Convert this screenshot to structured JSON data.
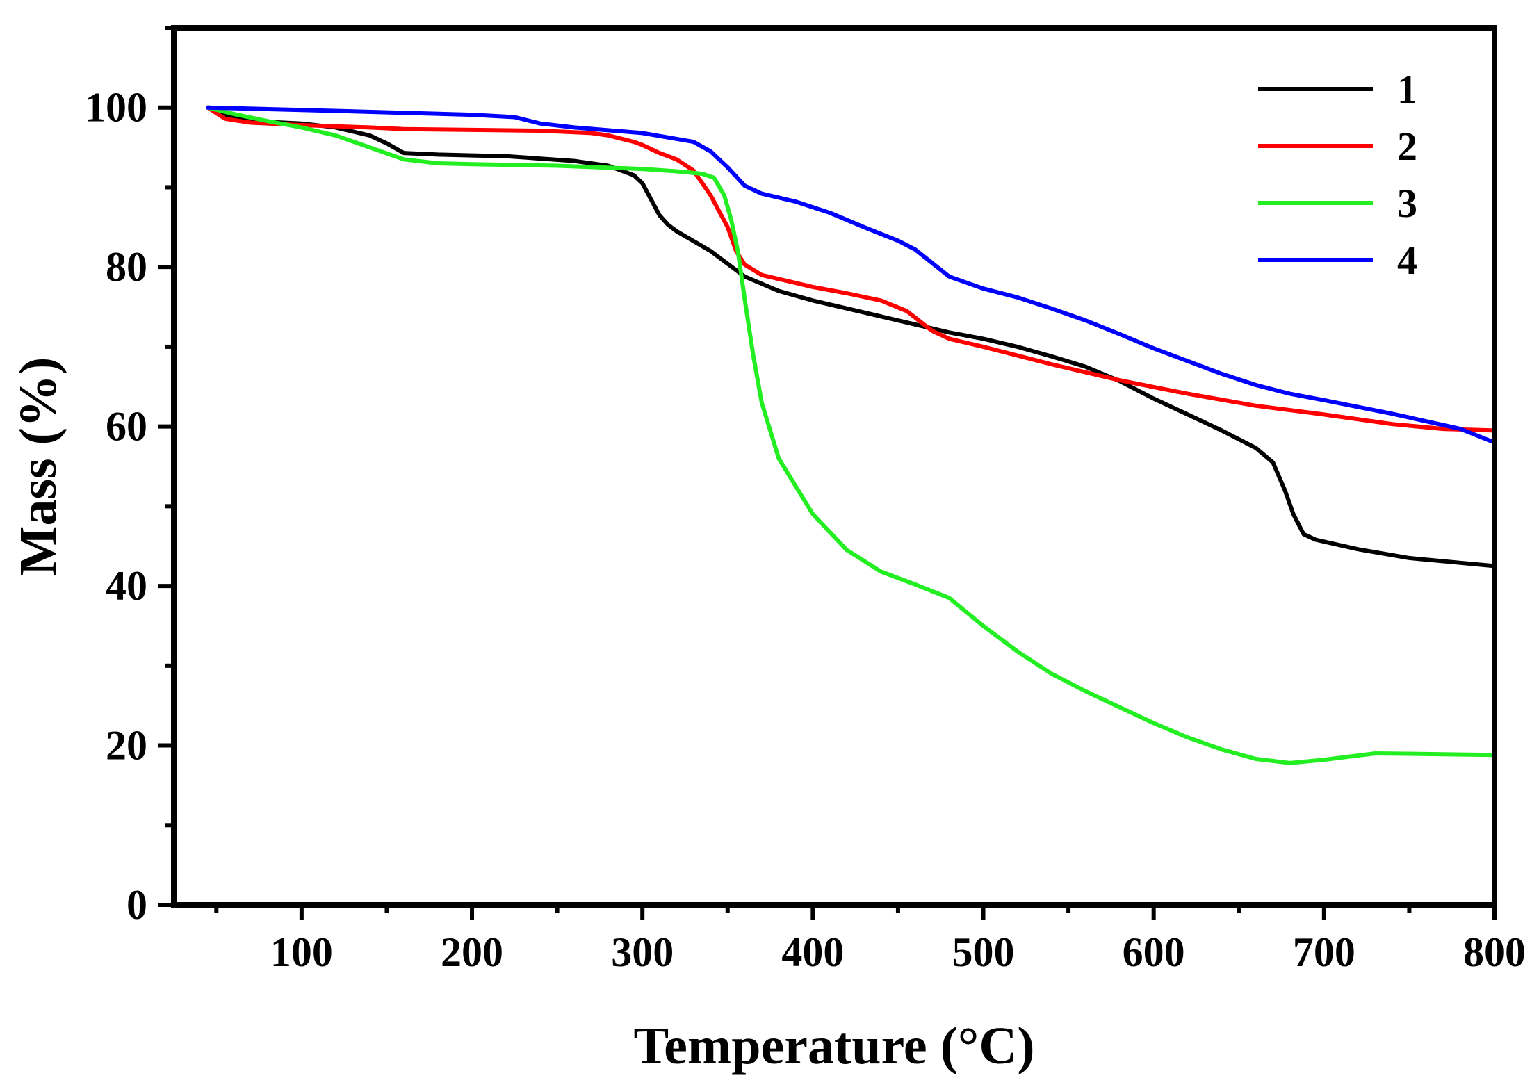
{
  "chart_data": {
    "type": "line",
    "title": "",
    "xlabel": "Temperature (°C)",
    "ylabel": "Mass (%)",
    "xlim": [
      25,
      800
    ],
    "ylim": [
      0,
      110
    ],
    "xticks": [
      100,
      200,
      300,
      400,
      500,
      600,
      700,
      800
    ],
    "yticks": [
      0,
      20,
      40,
      60,
      80,
      100
    ],
    "grid": false,
    "legend_position": "top-right",
    "series": [
      {
        "name": "1",
        "color": "#000000",
        "points": [
          [
            45,
            100
          ],
          [
            55,
            99
          ],
          [
            70,
            98.3
          ],
          [
            100,
            98
          ],
          [
            120,
            97.5
          ],
          [
            140,
            96.5
          ],
          [
            150,
            95.5
          ],
          [
            160,
            94.3
          ],
          [
            180,
            94.1
          ],
          [
            200,
            94
          ],
          [
            220,
            93.9
          ],
          [
            260,
            93.3
          ],
          [
            280,
            92.7
          ],
          [
            295,
            91.5
          ],
          [
            300,
            90.5
          ],
          [
            305,
            88.5
          ],
          [
            310,
            86.5
          ],
          [
            315,
            85.3
          ],
          [
            320,
            84.5
          ],
          [
            340,
            82
          ],
          [
            360,
            78.8
          ],
          [
            380,
            77
          ],
          [
            400,
            75.8
          ],
          [
            420,
            74.8
          ],
          [
            460,
            72.8
          ],
          [
            480,
            71.8
          ],
          [
            500,
            71
          ],
          [
            520,
            70
          ],
          [
            540,
            68.8
          ],
          [
            560,
            67.5
          ],
          [
            580,
            65.7
          ],
          [
            600,
            63.5
          ],
          [
            620,
            61.5
          ],
          [
            640,
            59.5
          ],
          [
            660,
            57.3
          ],
          [
            670,
            55.5
          ],
          [
            677,
            52
          ],
          [
            682,
            49
          ],
          [
            688,
            46.5
          ],
          [
            695,
            45.8
          ],
          [
            720,
            44.6
          ],
          [
            750,
            43.5
          ],
          [
            780,
            42.9
          ],
          [
            800,
            42.5
          ]
        ]
      },
      {
        "name": "2",
        "color": "#ff0000",
        "points": [
          [
            45,
            100
          ],
          [
            50,
            99.3
          ],
          [
            55,
            98.6
          ],
          [
            70,
            98.1
          ],
          [
            100,
            97.8
          ],
          [
            140,
            97.5
          ],
          [
            160,
            97.3
          ],
          [
            200,
            97.2
          ],
          [
            240,
            97.1
          ],
          [
            270,
            96.8
          ],
          [
            280,
            96.5
          ],
          [
            295,
            95.7
          ],
          [
            300,
            95.3
          ],
          [
            310,
            94.3
          ],
          [
            320,
            93.5
          ],
          [
            330,
            92.1
          ],
          [
            340,
            89
          ],
          [
            350,
            85
          ],
          [
            355,
            82
          ],
          [
            360,
            80.3
          ],
          [
            370,
            79
          ],
          [
            400,
            77.5
          ],
          [
            420,
            76.7
          ],
          [
            440,
            75.8
          ],
          [
            455,
            74.5
          ],
          [
            470,
            72
          ],
          [
            480,
            71
          ],
          [
            500,
            70
          ],
          [
            540,
            67.8
          ],
          [
            580,
            65.8
          ],
          [
            620,
            64.1
          ],
          [
            660,
            62.6
          ],
          [
            700,
            61.5
          ],
          [
            740,
            60.3
          ],
          [
            770,
            59.7
          ],
          [
            800,
            59.5
          ]
        ]
      },
      {
        "name": "3",
        "color": "#22ee22",
        "points": [
          [
            45,
            100
          ],
          [
            60,
            99.2
          ],
          [
            80,
            98.3
          ],
          [
            100,
            97.5
          ],
          [
            120,
            96.5
          ],
          [
            140,
            95
          ],
          [
            160,
            93.5
          ],
          [
            180,
            93
          ],
          [
            200,
            92.9
          ],
          [
            250,
            92.7
          ],
          [
            300,
            92.3
          ],
          [
            320,
            92
          ],
          [
            335,
            91.7
          ],
          [
            342,
            91.2
          ],
          [
            348,
            89
          ],
          [
            352,
            86
          ],
          [
            356,
            82
          ],
          [
            360,
            76
          ],
          [
            365,
            69
          ],
          [
            370,
            63
          ],
          [
            380,
            56
          ],
          [
            400,
            49
          ],
          [
            420,
            44.5
          ],
          [
            440,
            41.8
          ],
          [
            460,
            40.2
          ],
          [
            480,
            38.5
          ],
          [
            500,
            35
          ],
          [
            520,
            31.8
          ],
          [
            540,
            29
          ],
          [
            560,
            26.8
          ],
          [
            580,
            24.8
          ],
          [
            600,
            22.8
          ],
          [
            620,
            21
          ],
          [
            640,
            19.5
          ],
          [
            660,
            18.3
          ],
          [
            680,
            17.8
          ],
          [
            700,
            18.2
          ],
          [
            730,
            19
          ],
          [
            770,
            18.9
          ],
          [
            800,
            18.8
          ]
        ]
      },
      {
        "name": "4",
        "color": "#0000ff",
        "points": [
          [
            45,
            100
          ],
          [
            100,
            99.7
          ],
          [
            150,
            99.4
          ],
          [
            200,
            99.1
          ],
          [
            225,
            98.8
          ],
          [
            240,
            98
          ],
          [
            260,
            97.5
          ],
          [
            300,
            96.8
          ],
          [
            330,
            95.7
          ],
          [
            340,
            94.5
          ],
          [
            350,
            92.5
          ],
          [
            360,
            90.2
          ],
          [
            370,
            89.2
          ],
          [
            390,
            88.2
          ],
          [
            410,
            86.8
          ],
          [
            430,
            85
          ],
          [
            450,
            83.3
          ],
          [
            460,
            82.2
          ],
          [
            470,
            80.5
          ],
          [
            480,
            78.8
          ],
          [
            500,
            77.3
          ],
          [
            520,
            76.2
          ],
          [
            540,
            74.8
          ],
          [
            560,
            73.3
          ],
          [
            580,
            71.6
          ],
          [
            600,
            69.8
          ],
          [
            620,
            68.2
          ],
          [
            640,
            66.6
          ],
          [
            660,
            65.2
          ],
          [
            680,
            64.1
          ],
          [
            700,
            63.3
          ],
          [
            740,
            61.6
          ],
          [
            780,
            59.7
          ],
          [
            800,
            58
          ]
        ]
      }
    ]
  }
}
